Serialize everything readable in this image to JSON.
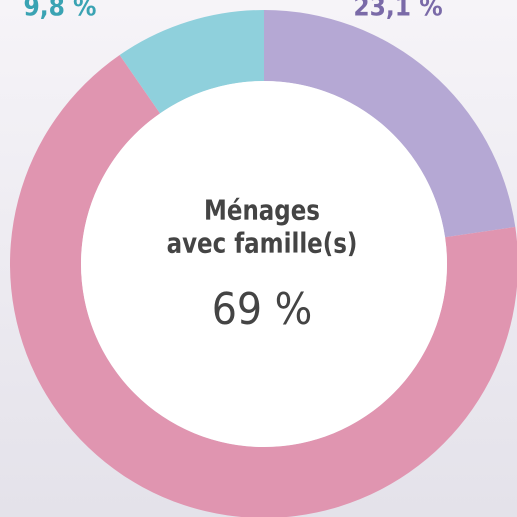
{
  "chart_data": {
    "type": "donut",
    "values": [
      23.1,
      69,
      9.8
    ],
    "value_labels": [
      "23,1 %",
      "69 %",
      "9,8 %"
    ],
    "colors": [
      "#b5a8d4",
      "#e095b0",
      "#8fd0dc"
    ],
    "label_colors": [
      "#7a6aa8",
      "#444444",
      "#3aa3b3"
    ],
    "center_label": [
      "Ménages",
      "avec famille(s)"
    ]
  }
}
